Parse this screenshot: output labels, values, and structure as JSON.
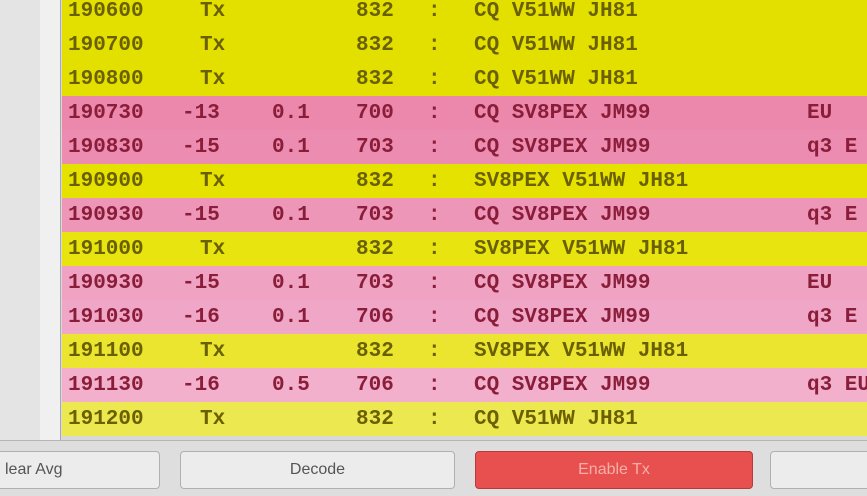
{
  "log": {
    "rows": [
      {
        "time": "190600",
        "snr": "Tx",
        "freq": "832",
        "sep": ":",
        "message": "CQ V51WW JH81",
        "color": "#e3e000"
      },
      {
        "time": "190700",
        "snr": "Tx",
        "freq": "832",
        "sep": ":",
        "message": "CQ V51WW JH81",
        "color": "#e3e000"
      },
      {
        "time": "190800",
        "snr": "Tx",
        "freq": "832",
        "sep": ":",
        "message": "CQ V51WW JH81",
        "color": "#e3e000"
      },
      {
        "time": "190730",
        "snr": "-13",
        "dt": "0.1",
        "freq": "700",
        "sep": ":",
        "message": "CQ SV8PEX JM99",
        "note": "EU",
        "color": "#ec88ac"
      },
      {
        "time": "190830",
        "snr": "-15",
        "dt": "0.1",
        "freq": "703",
        "sep": ":",
        "message": "CQ SV8PEX JM99",
        "note": "q3 E",
        "color": "#ec8cb0"
      },
      {
        "time": "190900",
        "snr": "Tx",
        "freq": "832",
        "sep": ":",
        "message": "SV8PEX V51WW JH81",
        "color": "#e6e200"
      },
      {
        "time": "190930",
        "snr": "-15",
        "dt": "0.1",
        "freq": "703",
        "sep": ":",
        "message": "CQ SV8PEX JM99",
        "note": "q3 E",
        "color": "#ee96b8"
      },
      {
        "time": "191000",
        "snr": "Tx",
        "freq": "832",
        "sep": ":",
        "message": "SV8PEX V51WW JH81",
        "color": "#e8e410"
      },
      {
        "time": "190930",
        "snr": "-15",
        "dt": "0.1",
        "freq": "703",
        "sep": ":",
        "message": "CQ SV8PEX JM99",
        "note": "EU",
        "color": "#efa2c2"
      },
      {
        "time": "191030",
        "snr": "-16",
        "dt": "0.1",
        "freq": "706",
        "sep": ":",
        "message": "CQ SV8PEX JM99",
        "note": "q3 E",
        "color": "#f0a6c6"
      },
      {
        "time": "191100",
        "snr": "Tx",
        "freq": "832",
        "sep": ":",
        "message": "SV8PEX V51WW JH81",
        "color": "#ebe530"
      },
      {
        "time": "191130",
        "snr": "-16",
        "dt": "0.5",
        "freq": "706",
        "sep": ":",
        "message": "CQ SV8PEX JM99",
        "note": "q3 EU",
        "color": "#f2b0cc"
      },
      {
        "time": "191200",
        "snr": "Tx",
        "freq": "832",
        "sep": ":",
        "message": "CQ V51WW JH81",
        "color": "#ece850"
      }
    ]
  },
  "buttons": {
    "clear": "lear Avg",
    "decode": "Decode",
    "enable": "Enable Tx"
  }
}
